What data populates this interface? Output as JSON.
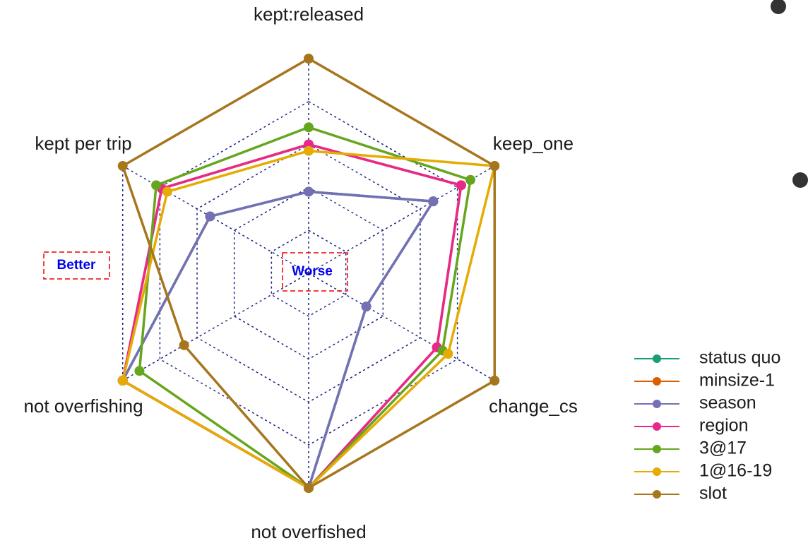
{
  "chart_data": {
    "type": "radar",
    "axes": [
      "kept:released",
      "keep_one",
      "change_cs",
      "not overfished",
      "not overfishing",
      "kept per trip"
    ],
    "rlim": [
      0,
      1
    ],
    "rticks": [
      0.2,
      0.4,
      0.6,
      0.8,
      1
    ],
    "grid": true,
    "series": [
      {
        "name": "status quo",
        "color": "#1b9e77",
        "values": [
          0.38,
          0.67,
          0.31,
          1,
          1,
          0.53
        ]
      },
      {
        "name": "minsize-1",
        "color": "#d95f02",
        "values": [
          0.6,
          0.82,
          0.69,
          1,
          1,
          0.79
        ]
      },
      {
        "name": "season",
        "color": "#7570b3",
        "values": [
          0.38,
          0.67,
          0.31,
          1,
          1,
          0.53
        ]
      },
      {
        "name": "region",
        "color": "#e7298a",
        "values": [
          0.6,
          0.82,
          0.69,
          1,
          1,
          0.79
        ]
      },
      {
        "name": "3@17",
        "color": "#66a61e",
        "values": [
          0.68,
          0.87,
          0.72,
          1,
          0.91,
          0.82
        ]
      },
      {
        "name": "1@16-19",
        "color": "#e6ab02",
        "values": [
          0.57,
          1,
          0.75,
          1,
          1,
          0.76
        ]
      },
      {
        "name": "slot",
        "color": "#a6761d",
        "values": [
          1,
          1,
          1,
          1,
          0.67,
          1
        ]
      }
    ],
    "annotations": [
      {
        "text": "Better"
      },
      {
        "text": "Worse"
      }
    ]
  }
}
